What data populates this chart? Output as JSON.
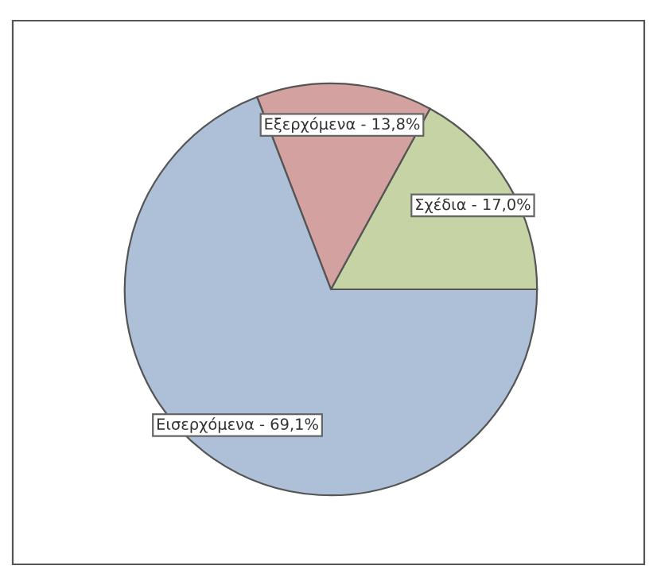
{
  "chart_data": {
    "type": "pie",
    "categories": [
      "Σχέδια",
      "Εξερχόμενα",
      "Εισερχόμενα"
    ],
    "values": [
      17.0,
      13.8,
      69.1
    ],
    "value_labels": [
      "17,0%",
      "13,8%",
      "69,1%"
    ],
    "colors": [
      "#c5d3a5",
      "#d4a1a1",
      "#adc0d8"
    ],
    "legend": false
  }
}
